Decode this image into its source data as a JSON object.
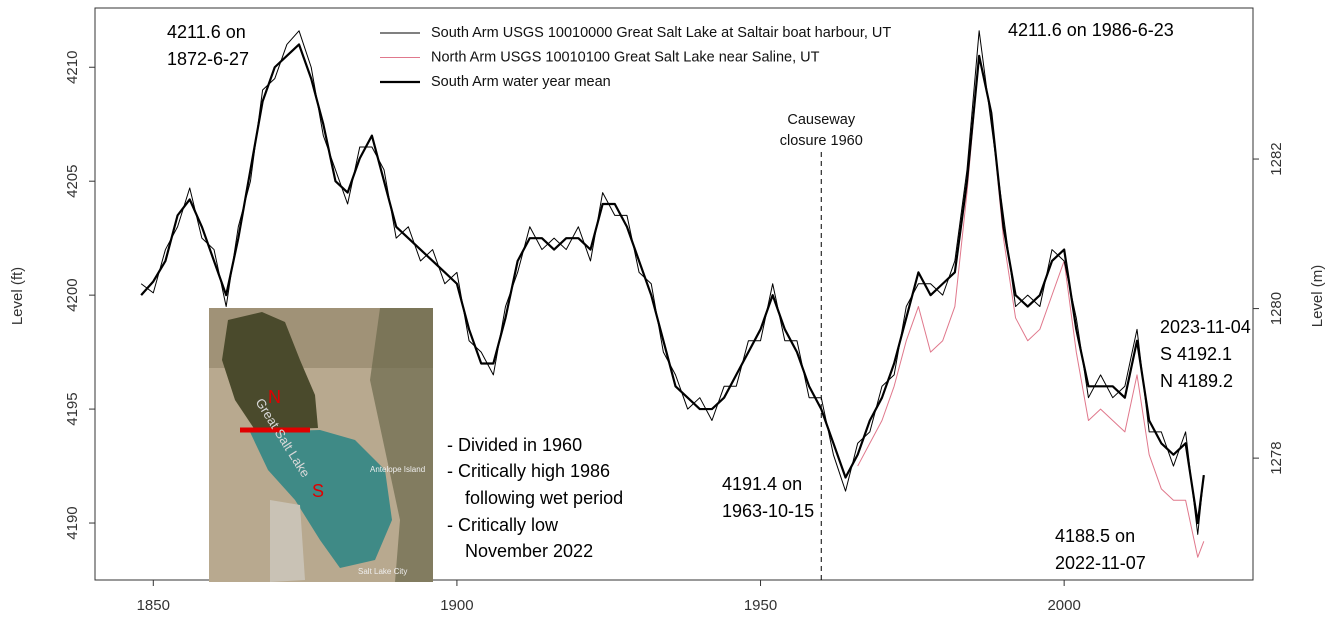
{
  "chart_data": {
    "type": "line",
    "y_label": "Level (ft)",
    "y2_label": "Level (m)",
    "x": [
      1848,
      1850,
      1852,
      1854,
      1856,
      1858,
      1860,
      1862,
      1864,
      1866,
      1868,
      1870,
      1872,
      1874,
      1876,
      1878,
      1880,
      1882,
      1884,
      1886,
      1888,
      1890,
      1892,
      1894,
      1896,
      1898,
      1900,
      1902,
      1904,
      1906,
      1908,
      1910,
      1912,
      1914,
      1916,
      1918,
      1920,
      1922,
      1924,
      1926,
      1928,
      1930,
      1932,
      1934,
      1936,
      1938,
      1940,
      1942,
      1944,
      1946,
      1948,
      1950,
      1952,
      1954,
      1956,
      1958,
      1960,
      1962,
      1964,
      1966,
      1968,
      1970,
      1972,
      1974,
      1976,
      1978,
      1980,
      1982,
      1984,
      1986,
      1988,
      1990,
      1992,
      1994,
      1996,
      1998,
      2000,
      2002,
      2004,
      2006,
      2008,
      2010,
      2012,
      2014,
      2016,
      2018,
      2020,
      2022,
      2023
    ],
    "xlim": [
      1840.4,
      2031.1
    ],
    "xticks": [
      1850,
      1900,
      1950,
      2000
    ],
    "ylim": [
      4187.5,
      4212.6
    ],
    "yticks": [
      4190,
      4195,
      4200,
      4205,
      4210
    ],
    "y2lim": [
      1276.37,
      1284.02
    ],
    "y2ticks": [
      1278,
      1280,
      1282
    ],
    "series": [
      {
        "name": "South Arm USGS 10010000 Great Salt Lake at Saltair boat harbour, UT",
        "color": "#000000",
        "values": [
          4200.5,
          4200.1,
          4202.0,
          4203.0,
          4204.7,
          4202.5,
          4202.0,
          4199.5,
          4203.0,
          4205.0,
          4209.0,
          4209.5,
          4211.0,
          4211.6,
          4210.0,
          4207.0,
          4205.5,
          4204.0,
          4206.5,
          4206.5,
          4205.5,
          4202.5,
          4203.0,
          4201.5,
          4202.0,
          4200.5,
          4201.0,
          4198.0,
          4197.5,
          4196.5,
          4199.5,
          4201.0,
          4203.0,
          4202.0,
          4202.5,
          4202.0,
          4203.0,
          4201.5,
          4204.5,
          4203.5,
          4203.5,
          4201.0,
          4200.5,
          4197.5,
          4196.5,
          4195.0,
          4195.5,
          4194.5,
          4196.0,
          4196.0,
          4198.0,
          4198.0,
          4200.5,
          4198.0,
          4198.0,
          4195.5,
          4195.5,
          4193.0,
          4191.4,
          4193.5,
          4194.0,
          4196.0,
          4196.5,
          4199.5,
          4200.5,
          4200.5,
          4200.0,
          4201.5,
          4205.5,
          4211.6,
          4207.5,
          4203.5,
          4199.5,
          4200.0,
          4199.5,
          4202.0,
          4201.5,
          4199.0,
          4195.5,
          4196.5,
          4195.5,
          4196.0,
          4198.5,
          4194.0,
          4194.0,
          4192.5,
          4194.0,
          4189.5,
          4192.1
        ]
      },
      {
        "name": "North Arm USGS 10010100 Great Salt Lake near Saline, UT",
        "color": "#e0788c",
        "values": [
          null,
          null,
          null,
          null,
          null,
          null,
          null,
          null,
          null,
          null,
          null,
          null,
          null,
          null,
          null,
          null,
          null,
          null,
          null,
          null,
          null,
          null,
          null,
          null,
          null,
          null,
          null,
          null,
          null,
          null,
          null,
          null,
          null,
          null,
          null,
          null,
          null,
          null,
          null,
          null,
          null,
          null,
          null,
          null,
          null,
          null,
          null,
          null,
          null,
          null,
          null,
          null,
          null,
          null,
          null,
          null,
          null,
          null,
          null,
          4192.5,
          4193.5,
          4194.5,
          4196.0,
          4198.0,
          4199.5,
          4197.5,
          4198.0,
          4199.5,
          4204.5,
          4210.5,
          4208.0,
          4202.5,
          4199.0,
          4198.0,
          4198.5,
          4200.0,
          4201.5,
          4197.5,
          4194.5,
          4195.0,
          4194.5,
          4194.0,
          4196.5,
          4193.0,
          4191.5,
          4191.0,
          4191.0,
          4188.5,
          4189.2
        ]
      },
      {
        "name": "South Arm water year mean",
        "color": "#000000",
        "values": [
          4200.0,
          4200.6,
          4201.5,
          4203.5,
          4204.2,
          4203.0,
          4201.5,
          4200.0,
          4202.5,
          4205.5,
          4208.5,
          4210.0,
          4210.5,
          4211.0,
          4209.5,
          4207.5,
          4205.0,
          4204.5,
          4206.0,
          4207.0,
          4205.0,
          4203.0,
          4202.5,
          4202.0,
          4201.5,
          4201.0,
          4200.5,
          4198.5,
          4197.0,
          4197.0,
          4199.0,
          4201.5,
          4202.5,
          4202.5,
          4202.0,
          4202.5,
          4202.5,
          4202.0,
          4204.0,
          4204.0,
          4203.0,
          4201.5,
          4200.0,
          4198.0,
          4196.0,
          4195.5,
          4195.0,
          4195.0,
          4195.5,
          4196.5,
          4197.5,
          4198.5,
          4200.0,
          4198.5,
          4197.5,
          4196.0,
          4195.0,
          4193.5,
          4192.0,
          4193.0,
          4194.5,
          4195.5,
          4197.0,
          4199.0,
          4201.0,
          4200.0,
          4200.5,
          4201.0,
          4205.0,
          4210.5,
          4208.0,
          4203.0,
          4200.0,
          4199.5,
          4200.0,
          4201.5,
          4202.0,
          4198.5,
          4196.0,
          4196.0,
          4196.0,
          4195.5,
          4198.0,
          4194.5,
          4193.5,
          4193.0,
          4193.5,
          4190.0,
          4192.1
        ]
      }
    ],
    "event": {
      "x": 1960,
      "lines": [
        "Causeway",
        "closure 1960"
      ]
    },
    "annotations": [
      {
        "lines": [
          "4211.6 on",
          "1872-6-27"
        ]
      },
      {
        "lines": [
          "4211.6 on 1986-6-23"
        ]
      },
      {
        "lines": [
          "2023-11-04",
          "S 4192.1",
          "N 4189.2"
        ]
      },
      {
        "lines": [
          "4191.4 on",
          "1963-10-15"
        ]
      },
      {
        "lines": [
          "4188.5 on",
          "2022-11-07"
        ]
      }
    ],
    "notes": [
      "- Divided in 1960",
      "- Critically high 1986",
      "following wet period",
      "- Critically low",
      "November 2022"
    ],
    "map_labels": [
      "N",
      "S",
      "Great Salt Lake",
      "Antelope Island",
      "Salt Lake City"
    ]
  }
}
